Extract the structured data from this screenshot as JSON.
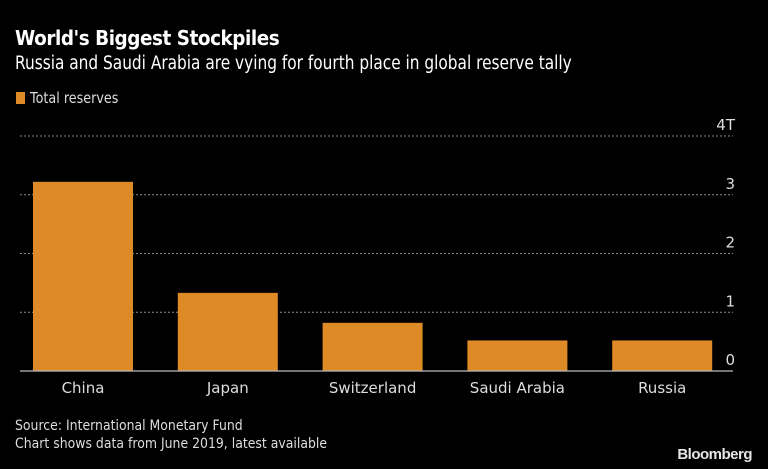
{
  "header": {
    "title": "World's Biggest Stockpiles",
    "subtitle": "Russia and Saudi Arabia are vying for fourth place in global reserve tally"
  },
  "legend": {
    "label": "Total reserves",
    "color": "#de8a26"
  },
  "footer": {
    "source": "Source: International Monetary Fund",
    "note": "Chart shows data from June 2019, latest available",
    "brand": "Bloomberg"
  },
  "chart_data": {
    "type": "bar",
    "title": "World's Biggest Stockpiles",
    "subtitle": "Russia and Saudi Arabia are vying for fourth place in global reserve tally",
    "xlabel": "",
    "ylabel": "",
    "categories": [
      "China",
      "Japan",
      "Switzerland",
      "Saudi Arabia",
      "Russia"
    ],
    "series": [
      {
        "name": "Total reserves",
        "color": "#de8a26",
        "values": [
          3.22,
          1.33,
          0.82,
          0.52,
          0.52
        ]
      }
    ],
    "ylim": [
      0,
      4
    ],
    "yticks": [
      0,
      1,
      2,
      3,
      4
    ],
    "ytick_labels": [
      "0",
      "1",
      "2",
      "3",
      "4T"
    ],
    "y_axis_side": "right",
    "grid": true,
    "legend_position": "top-left",
    "units": "trillion USD"
  }
}
